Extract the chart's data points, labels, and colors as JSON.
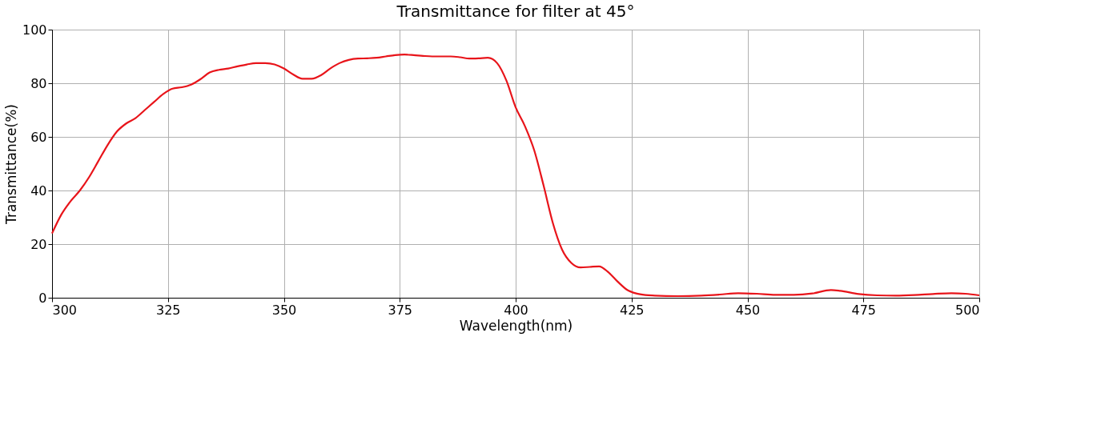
{
  "chart_data": {
    "type": "line",
    "title": "Transmittance for filter at 45°",
    "xlabel": "Wavelength(nm)",
    "ylabel": "Transmittance(%)",
    "x": [
      300,
      302,
      304,
      306,
      308,
      310,
      312,
      314,
      316,
      318,
      320,
      322,
      324,
      326,
      328,
      330,
      332,
      334,
      336,
      338,
      340,
      342,
      344,
      346,
      348,
      350,
      352,
      354,
      356,
      358,
      360,
      362,
      364,
      366,
      368,
      370,
      372,
      374,
      376,
      378,
      380,
      382,
      384,
      386,
      388,
      390,
      392,
      394,
      396,
      398,
      400,
      402,
      404,
      406,
      408,
      410,
      412,
      414,
      416,
      418,
      420,
      422,
      424,
      426,
      428,
      430,
      435,
      440,
      444,
      448,
      452,
      456,
      460,
      464,
      468,
      470,
      474,
      478,
      482,
      486,
      490,
      494,
      497,
      500
    ],
    "series": [
      {
        "color": "#e8141a",
        "values": [
          24,
          31,
          36,
          40,
          45,
          51,
          57,
          62,
          65,
          67,
          70,
          73,
          76,
          78,
          78.5,
          79.5,
          81.5,
          84,
          85,
          85.5,
          86.3,
          87,
          87.5,
          87.5,
          87,
          85.5,
          83.3,
          81.7,
          81.7,
          83,
          85.5,
          87.5,
          88.7,
          89.2,
          89.3,
          89.5,
          90,
          90.5,
          90.7,
          90.5,
          90.2,
          90,
          90,
          90,
          89.7,
          89.2,
          89.3,
          89.5,
          87.5,
          81,
          71,
          64,
          55,
          42,
          28,
          18,
          13,
          11.3,
          11.5,
          11.7,
          9.5,
          6,
          3,
          1.6,
          1,
          0.8,
          0.6,
          0.8,
          1.2,
          1.7,
          1.5,
          1.1,
          1.1,
          1.6,
          2.9,
          2.6,
          1.4,
          0.9,
          0.8,
          1.0,
          1.4,
          1.7,
          1.5,
          0.9
        ]
      }
    ],
    "xlim": [
      300,
      500
    ],
    "xticks": [
      300,
      325,
      350,
      375,
      400,
      425,
      450,
      475,
      500
    ],
    "ylim": [
      0,
      100
    ],
    "yticks": [
      0,
      20,
      40,
      60,
      80,
      100
    ],
    "grid": true,
    "marker": "none",
    "line_style": "solid"
  }
}
